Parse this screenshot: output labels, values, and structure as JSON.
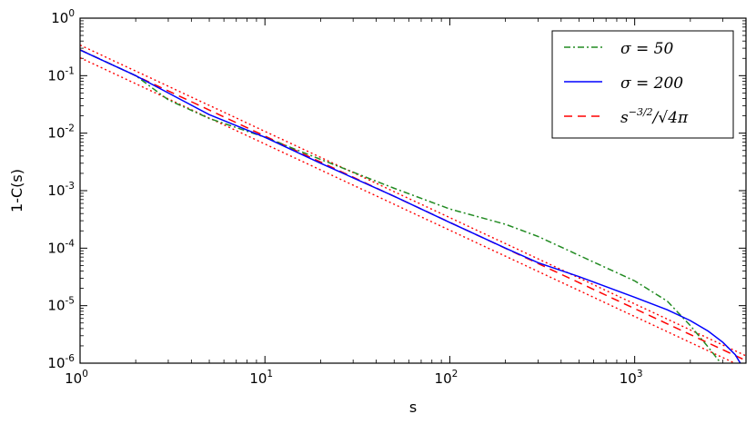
{
  "chart_data": {
    "type": "line",
    "title": "",
    "xlabel": "s",
    "ylabel": "1-C(s)",
    "xscale": "log",
    "yscale": "log",
    "xlim": [
      1,
      4000
    ],
    "ylim": [
      1e-06,
      1
    ],
    "x_ticks": [
      {
        "base": "10",
        "exp": "0",
        "value": 1
      },
      {
        "base": "10",
        "exp": "1",
        "value": 10
      },
      {
        "base": "10",
        "exp": "2",
        "value": 100
      },
      {
        "base": "10",
        "exp": "3",
        "value": 1000
      }
    ],
    "y_ticks": [
      {
        "base": "10",
        "exp": "0",
        "value": 1
      },
      {
        "base": "10",
        "exp": "-1",
        "value": 0.1
      },
      {
        "base": "10",
        "exp": "-2",
        "value": 0.01
      },
      {
        "base": "10",
        "exp": "-3",
        "value": 0.001
      },
      {
        "base": "10",
        "exp": "-4",
        "value": 0.0001
      },
      {
        "base": "10",
        "exp": "-5",
        "value": 1e-05
      },
      {
        "base": "10",
        "exp": "-6",
        "value": 1e-06
      }
    ],
    "grid": false,
    "legend_position": "top-right",
    "series": [
      {
        "name": "σ = 50",
        "color": "#228b22",
        "style": "dashdot",
        "x": [
          1,
          2,
          3,
          5,
          10,
          20,
          50,
          100,
          200,
          300,
          500,
          1000,
          1500,
          2000,
          2500,
          3000
        ],
        "y": [
          0.28,
          0.1,
          0.038,
          0.018,
          0.0085,
          0.0035,
          0.0011,
          0.00048,
          0.00026,
          0.00016,
          7.5e-05,
          2.7e-05,
          1.2e-05,
          4.5e-06,
          1.9e-06,
          9e-07
        ]
      },
      {
        "name": "σ = 200",
        "color": "#0000ff",
        "style": "solid",
        "x": [
          1,
          2,
          3,
          5,
          10,
          20,
          50,
          100,
          200,
          300,
          500,
          1000,
          1500,
          2000,
          2500,
          3000,
          3500,
          3800
        ],
        "y": [
          0.28,
          0.1,
          0.05,
          0.021,
          0.0085,
          0.003,
          0.0008,
          0.00028,
          0.0001,
          5.6e-05,
          3.2e-05,
          1.4e-05,
          8.5e-06,
          5.5e-06,
          3.6e-06,
          2.3e-06,
          1.4e-06,
          9e-07
        ]
      },
      {
        "name": "s^-3/2 / √4π",
        "color": "#ff0000",
        "style": "dashed",
        "x": [
          1,
          4000
        ],
        "y": [
          0.282,
          1.11e-06
        ]
      },
      {
        "name": "",
        "color": "#ff0000",
        "style": "dotted",
        "x": [
          1,
          4000
        ],
        "y": [
          0.34,
          1.34e-06
        ]
      },
      {
        "name": "",
        "color": "#ff0000",
        "style": "dotted",
        "x": [
          1,
          4000
        ],
        "y": [
          0.205,
          8.1e-07
        ]
      }
    ],
    "legend": [
      {
        "label_main": "σ = 50",
        "label_sup": "",
        "label_tail": "",
        "color": "#228b22",
        "style": "dashdot"
      },
      {
        "label_main": "σ = 200",
        "label_sup": "",
        "label_tail": "",
        "color": "#0000ff",
        "style": "solid"
      },
      {
        "label_main": "s",
        "label_sup": "−3/2",
        "label_tail": "/√4π",
        "color": "#ff0000",
        "style": "dashed"
      }
    ]
  }
}
